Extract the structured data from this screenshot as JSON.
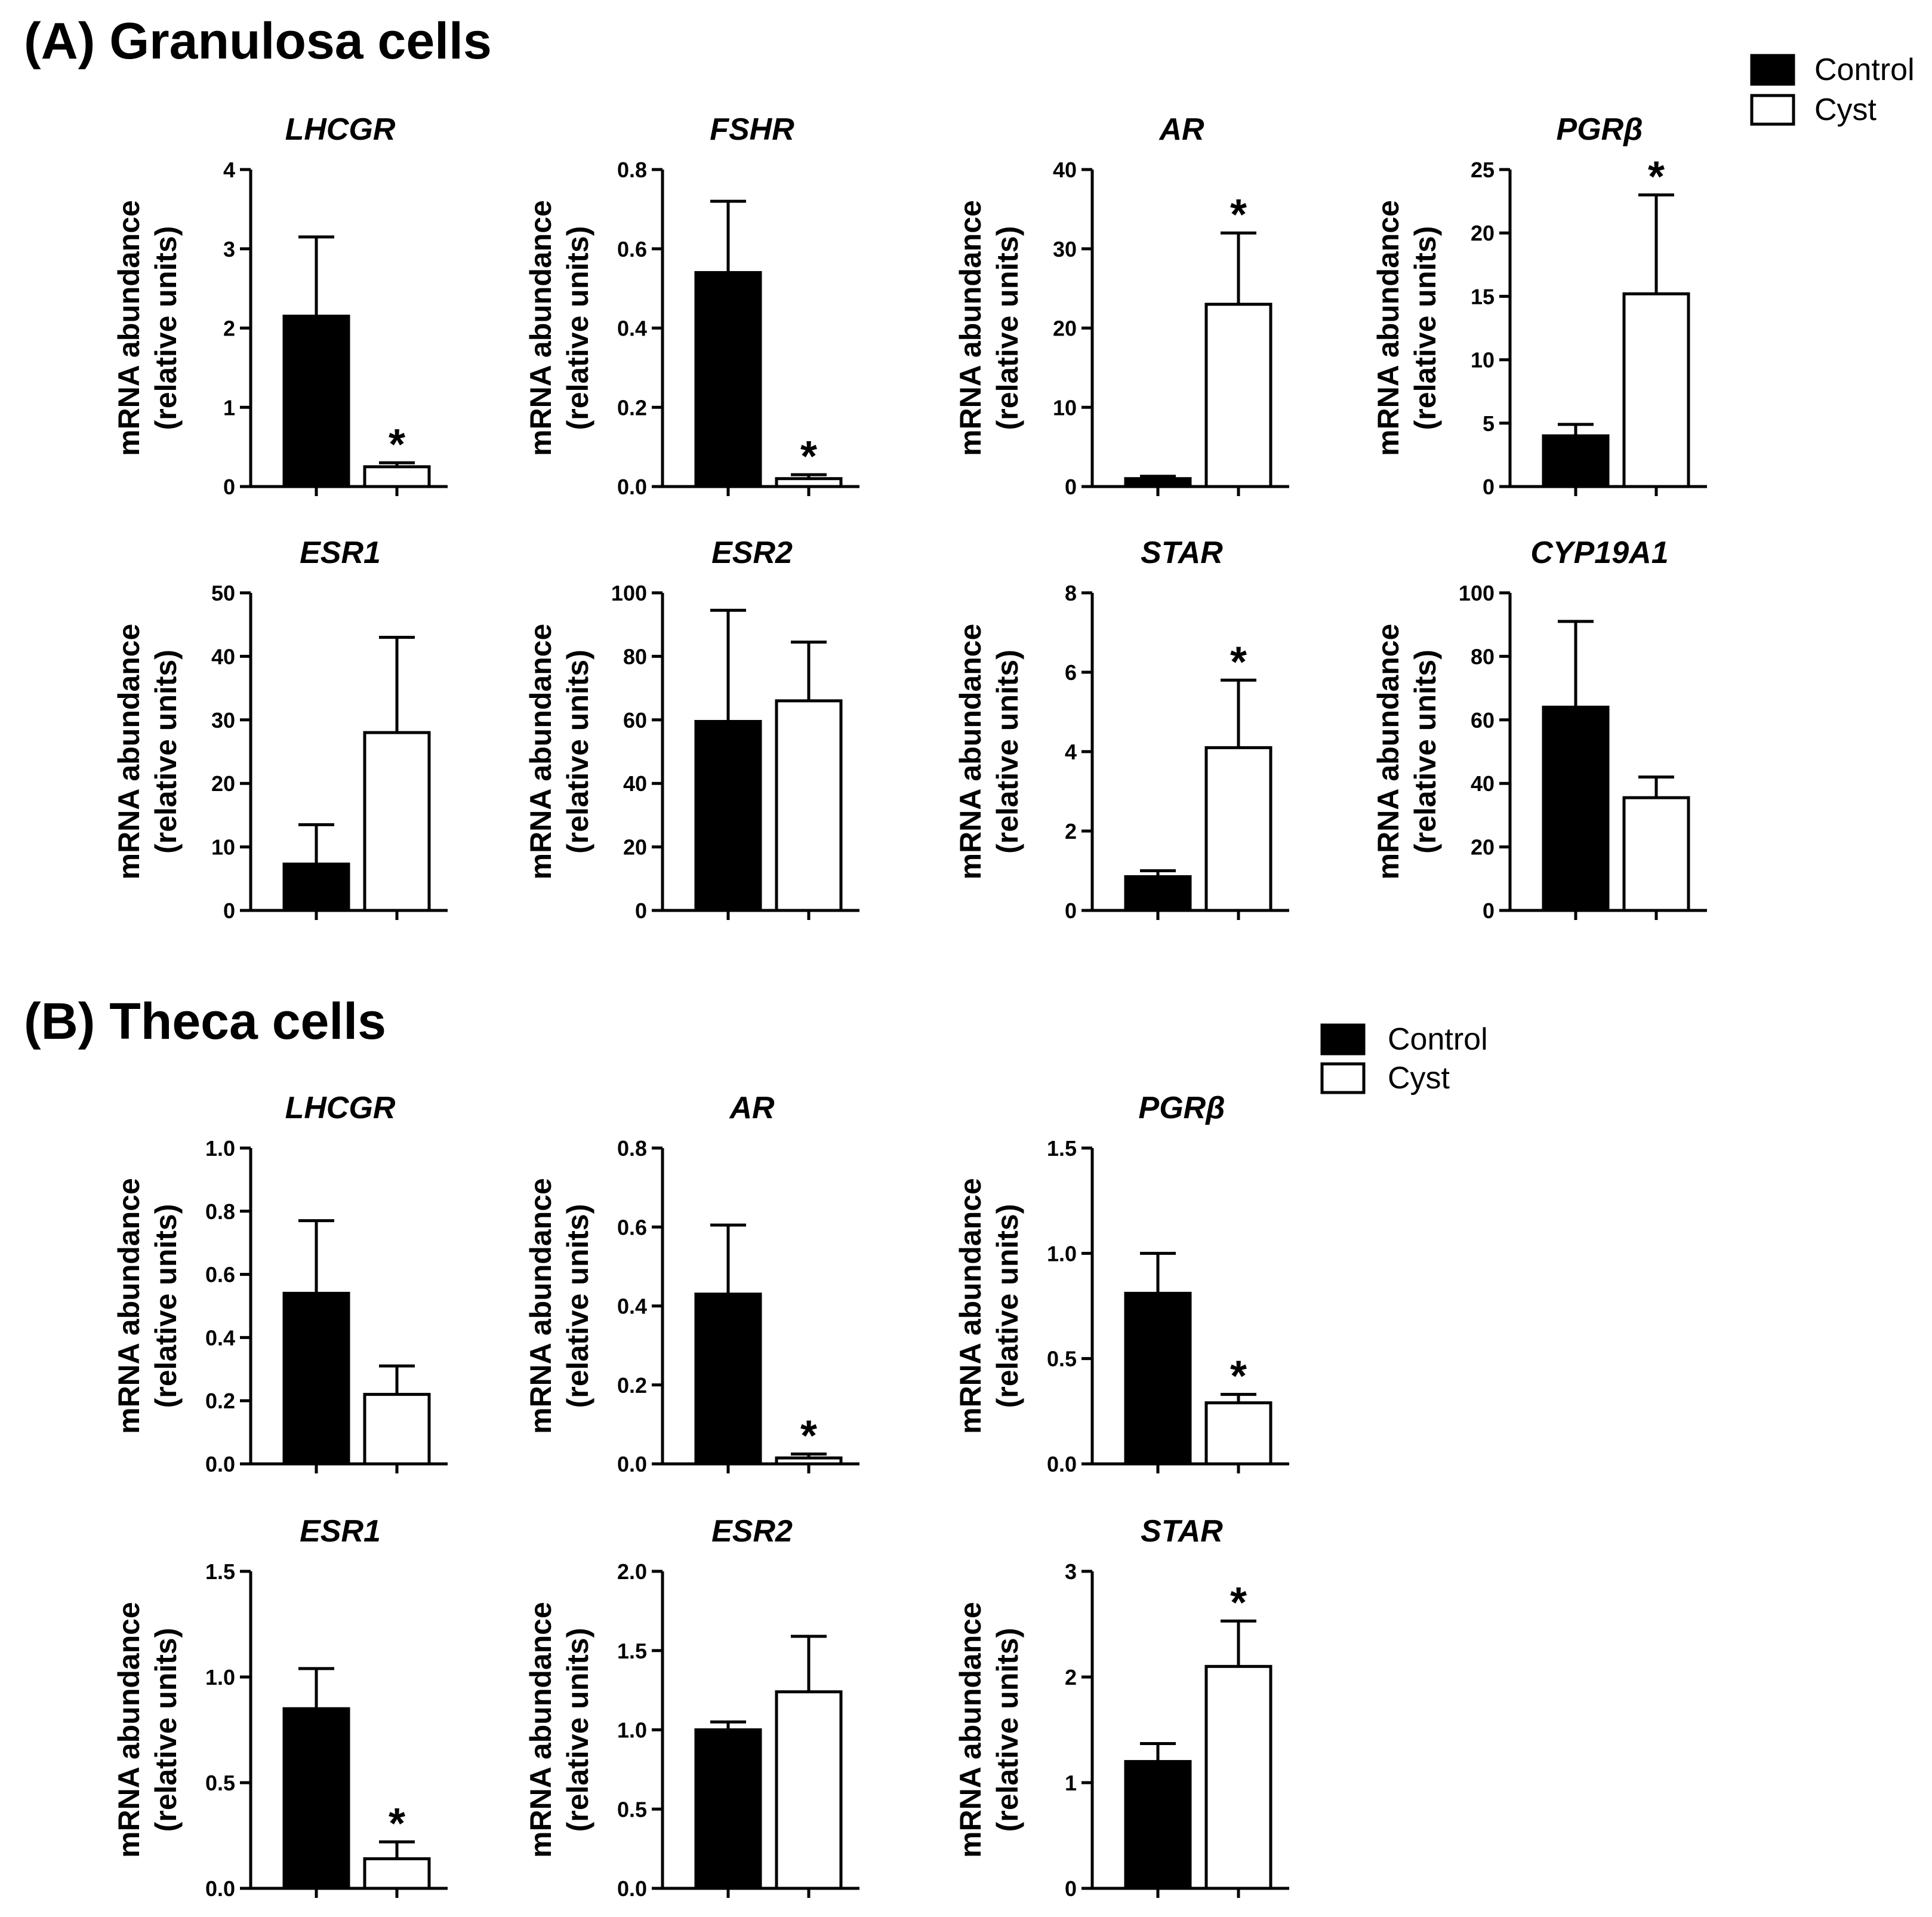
{
  "sections": [
    {
      "title": "(A) Granulosa cells",
      "legend": {
        "items": [
          "Control",
          "Cyst"
        ]
      }
    },
    {
      "title": "(B) Theca cells",
      "legend": {
        "items": [
          "Control",
          "Cyst"
        ]
      }
    }
  ],
  "colors": {
    "control": "#000000",
    "cyst": "#ffffff",
    "axis": "#000000"
  },
  "chart_data": [
    {
      "section": 0,
      "type": "bar",
      "title": "LHCGR",
      "categories": [
        "Control",
        "Cyst"
      ],
      "values": [
        2.15,
        0.25
      ],
      "errors": [
        1.0,
        0.05
      ],
      "significant": [
        false,
        true
      ],
      "ylim": [
        0,
        4
      ],
      "ticks": [
        "0",
        "1",
        "2",
        "3",
        "4"
      ],
      "ylabel": [
        "mRNA abundance",
        "(relative units)"
      ]
    },
    {
      "section": 0,
      "type": "bar",
      "title": "FSHR",
      "categories": [
        "Control",
        "Cyst"
      ],
      "values": [
        0.54,
        0.02
      ],
      "errors": [
        0.18,
        0.01
      ],
      "significant": [
        false,
        true
      ],
      "ylim": [
        0,
        0.8
      ],
      "ticks": [
        "0.0",
        "0.2",
        "0.4",
        "0.6",
        "0.8"
      ],
      "ylabel": [
        "mRNA abundance",
        "(relative units)"
      ]
    },
    {
      "section": 0,
      "type": "bar",
      "title": "AR",
      "categories": [
        "Control",
        "Cyst"
      ],
      "values": [
        1.0,
        23.0
      ],
      "errors": [
        0.3,
        9.0
      ],
      "significant": [
        false,
        true
      ],
      "ylim": [
        0,
        40
      ],
      "ticks": [
        "0",
        "10",
        "20",
        "30",
        "40"
      ],
      "ylabel": [
        "mRNA abundance",
        "(relative units)"
      ]
    },
    {
      "section": 0,
      "type": "bar",
      "title": "PGRβ",
      "categories": [
        "Control",
        "Cyst"
      ],
      "values": [
        4.0,
        15.2
      ],
      "errors": [
        0.9,
        7.8
      ],
      "significant": [
        false,
        true
      ],
      "ylim": [
        0,
        25
      ],
      "ticks": [
        "0",
        "5",
        "10",
        "15",
        "20",
        "25"
      ],
      "ylabel": [
        "mRNA abundance",
        "(relative units)"
      ]
    },
    {
      "section": 0,
      "type": "bar",
      "title": "ESR1",
      "categories": [
        "Control",
        "Cyst"
      ],
      "values": [
        7.3,
        28.0
      ],
      "errors": [
        6.2,
        15.0
      ],
      "significant": [
        false,
        false
      ],
      "ylim": [
        0,
        50
      ],
      "ticks": [
        "0",
        "10",
        "20",
        "30",
        "40",
        "50"
      ],
      "ylabel": [
        "mRNA abundance",
        "(relative units)"
      ]
    },
    {
      "section": 0,
      "type": "bar",
      "title": "ESR2",
      "categories": [
        "Control",
        "Cyst"
      ],
      "values": [
        59.5,
        66.0
      ],
      "errors": [
        35.0,
        18.5
      ],
      "significant": [
        false,
        false
      ],
      "ylim": [
        0,
        100
      ],
      "ticks": [
        "0",
        "20",
        "40",
        "60",
        "80",
        "100"
      ],
      "ylabel": [
        "mRNA abundance",
        "(relative units)"
      ]
    },
    {
      "section": 0,
      "type": "bar",
      "title": "STAR",
      "categories": [
        "Control",
        "Cyst"
      ],
      "values": [
        0.85,
        4.1
      ],
      "errors": [
        0.15,
        1.7
      ],
      "significant": [
        false,
        true
      ],
      "ylim": [
        0,
        8
      ],
      "ticks": [
        "0",
        "2",
        "4",
        "6",
        "8"
      ],
      "ylabel": [
        "mRNA abundance",
        "(relative units)"
      ]
    },
    {
      "section": 0,
      "type": "bar",
      "title": "CYP19A1",
      "categories": [
        "Control",
        "Cyst"
      ],
      "values": [
        64.0,
        35.5
      ],
      "errors": [
        27.0,
        6.5
      ],
      "significant": [
        false,
        false
      ],
      "ylim": [
        0,
        100
      ],
      "ticks": [
        "0",
        "20",
        "40",
        "60",
        "80",
        "100"
      ],
      "ylabel": [
        "mRNA abundance",
        "(relative units)"
      ]
    },
    {
      "section": 1,
      "type": "bar",
      "title": "LHCGR",
      "categories": [
        "Control",
        "Cyst"
      ],
      "values": [
        0.54,
        0.22
      ],
      "errors": [
        0.23,
        0.09
      ],
      "significant": [
        false,
        false
      ],
      "ylim": [
        0,
        1.0
      ],
      "ticks": [
        "0.0",
        "0.2",
        "0.4",
        "0.6",
        "0.8",
        "1.0"
      ],
      "ylabel": [
        "mRNA abundance",
        "(relative units)"
      ]
    },
    {
      "section": 1,
      "type": "bar",
      "title": "AR",
      "categories": [
        "Control",
        "Cyst"
      ],
      "values": [
        0.43,
        0.015
      ],
      "errors": [
        0.175,
        0.01
      ],
      "significant": [
        false,
        true
      ],
      "ylim": [
        0,
        0.8
      ],
      "ticks": [
        "0.0",
        "0.2",
        "0.4",
        "0.6",
        "0.8"
      ],
      "ylabel": [
        "mRNA abundance",
        "(relative units)"
      ]
    },
    {
      "section": 1,
      "type": "bar",
      "title": "PGRβ",
      "categories": [
        "Control",
        "Cyst"
      ],
      "values": [
        0.81,
        0.29
      ],
      "errors": [
        0.19,
        0.04
      ],
      "significant": [
        false,
        true
      ],
      "ylim": [
        0,
        1.5
      ],
      "ticks": [
        "0.0",
        "0.5",
        "1.0",
        "1.5"
      ],
      "ylabel": [
        "mRNA abundance",
        "(relative units)"
      ]
    },
    {
      "section": 1,
      "type": "bar",
      "title": "ESR1",
      "categories": [
        "Control",
        "Cyst"
      ],
      "values": [
        0.85,
        0.14
      ],
      "errors": [
        0.19,
        0.08
      ],
      "significant": [
        false,
        true
      ],
      "ylim": [
        0,
        1.5
      ],
      "ticks": [
        "0.0",
        "0.5",
        "1.0",
        "1.5"
      ],
      "ylabel": [
        "mRNA abundance",
        "(relative units)"
      ]
    },
    {
      "section": 1,
      "type": "bar",
      "title": "ESR2",
      "categories": [
        "Control",
        "Cyst"
      ],
      "values": [
        1.0,
        1.24
      ],
      "errors": [
        0.05,
        0.35
      ],
      "significant": [
        false,
        false
      ],
      "ylim": [
        0,
        2.0
      ],
      "ticks": [
        "0.0",
        "0.5",
        "1.0",
        "1.5",
        "2.0"
      ],
      "ylabel": [
        "mRNA abundance",
        "(relative units)"
      ]
    },
    {
      "section": 1,
      "type": "bar",
      "title": "STAR",
      "categories": [
        "Control",
        "Cyst"
      ],
      "values": [
        1.2,
        2.1
      ],
      "errors": [
        0.17,
        0.43
      ],
      "significant": [
        false,
        true
      ],
      "ylim": [
        0,
        3
      ],
      "ticks": [
        "0",
        "1",
        "2",
        "3"
      ],
      "ylabel": [
        "mRNA abundance",
        "(relative units)"
      ]
    }
  ]
}
